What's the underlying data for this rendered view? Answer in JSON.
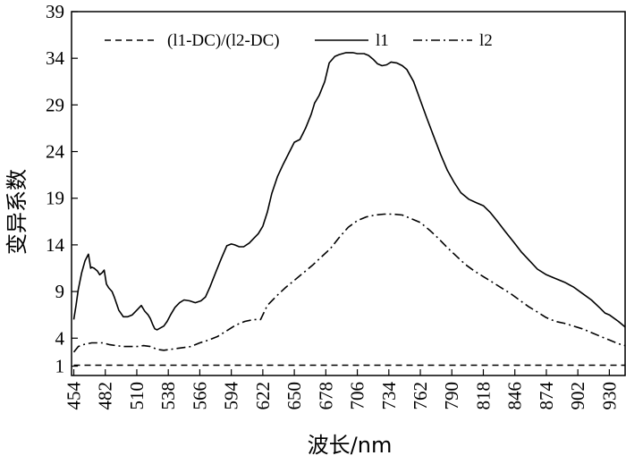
{
  "chart_data": {
    "type": "line",
    "title": "",
    "xlabel": "波长/nm",
    "ylabel": "变异系数",
    "xlim": [
      452,
      944
    ],
    "ylim": [
      0,
      39
    ],
    "x_ticks": [
      454,
      482,
      510,
      538,
      566,
      594,
      622,
      650,
      678,
      706,
      734,
      762,
      790,
      818,
      846,
      874,
      902,
      930
    ],
    "y_ticks": [
      1,
      4,
      9,
      14,
      19,
      24,
      29,
      34,
      39
    ],
    "grid": false,
    "legend_position": "top",
    "series": [
      {
        "name": "(l1-DC)/(l2-DC)",
        "line_style": "dashed",
        "color": "#000000",
        "x": [
          454,
          944
        ],
        "y": [
          1.1,
          1.1
        ]
      },
      {
        "name": "l1",
        "line_style": "solid",
        "color": "#000000",
        "x": [
          454,
          456,
          458,
          461,
          464,
          467,
          469,
          470,
          472,
          475,
          477,
          479,
          481,
          483,
          485,
          488,
          490,
          494,
          498,
          502,
          506,
          510,
          514,
          517,
          520,
          522,
          524,
          526,
          528,
          531,
          534,
          537,
          540,
          544,
          548,
          552,
          557,
          562,
          567,
          571,
          575,
          580,
          585,
          590,
          594,
          597,
          601,
          605,
          610,
          614,
          618,
          622,
          626,
          630,
          635,
          640,
          645,
          650,
          655,
          660,
          665,
          668,
          672,
          677,
          681,
          686,
          690,
          696,
          702,
          706,
          712,
          716,
          720,
          724,
          728,
          732,
          736,
          741,
          746,
          750,
          756,
          762,
          768,
          774,
          780,
          786,
          792,
          798,
          805,
          812,
          818,
          824,
          830,
          837,
          845,
          852,
          859,
          866,
          874,
          882,
          890,
          898,
          906,
          914,
          922,
          926,
          930,
          938,
          944
        ],
        "y": [
          6.0,
          7.5,
          9.2,
          11.0,
          12.3,
          13.0,
          11.5,
          11.6,
          11.5,
          11.2,
          10.8,
          11.0,
          11.3,
          9.8,
          9.4,
          9.0,
          8.4,
          7.0,
          6.3,
          6.3,
          6.5,
          7.0,
          7.5,
          6.9,
          6.5,
          6.1,
          5.5,
          5.0,
          4.9,
          5.1,
          5.3,
          5.8,
          6.5,
          7.3,
          7.8,
          8.1,
          8.0,
          7.8,
          8.0,
          8.4,
          9.5,
          11.0,
          12.5,
          13.9,
          14.1,
          14.0,
          13.8,
          13.8,
          14.2,
          14.7,
          15.2,
          16.0,
          17.5,
          19.5,
          21.3,
          22.6,
          23.8,
          25.0,
          25.3,
          26.5,
          28.0,
          29.2,
          30.0,
          31.5,
          33.5,
          34.2,
          34.4,
          34.6,
          34.6,
          34.5,
          34.5,
          34.3,
          33.9,
          33.4,
          33.2,
          33.3,
          33.6,
          33.5,
          33.2,
          32.8,
          31.5,
          29.5,
          27.5,
          25.6,
          23.7,
          22.0,
          20.7,
          19.6,
          18.9,
          18.5,
          18.2,
          17.5,
          16.6,
          15.5,
          14.3,
          13.2,
          12.3,
          11.4,
          10.8,
          10.4,
          10.0,
          9.5,
          8.8,
          8.1,
          7.2,
          6.7,
          6.5,
          5.8,
          5.2
        ],
        "note": ""
      },
      {
        "name": "l2",
        "line_style": "dashdot",
        "color": "#000000",
        "x": [
          454,
          458,
          462,
          466,
          470,
          475,
          480,
          486,
          492,
          498,
          504,
          510,
          516,
          522,
          528,
          534,
          540,
          546,
          552,
          558,
          566,
          574,
          582,
          590,
          598,
          606,
          614,
          620,
          626,
          634,
          642,
          650,
          658,
          666,
          674,
          682,
          690,
          698,
          706,
          714,
          722,
          730,
          738,
          746,
          754,
          762,
          770,
          778,
          786,
          794,
          802,
          810,
          818,
          826,
          834,
          842,
          850,
          858,
          866,
          874,
          882,
          890,
          898,
          906,
          914,
          922,
          930,
          938,
          944
        ],
        "y": [
          2.5,
          3.1,
          3.3,
          3.4,
          3.5,
          3.5,
          3.5,
          3.3,
          3.2,
          3.1,
          3.1,
          3.1,
          3.2,
          3.1,
          2.8,
          2.7,
          2.8,
          2.9,
          3.0,
          3.1,
          3.5,
          3.8,
          4.2,
          4.8,
          5.4,
          5.8,
          6.0,
          6.0,
          7.5,
          8.5,
          9.4,
          10.2,
          11.0,
          11.8,
          12.7,
          13.6,
          14.8,
          15.9,
          16.6,
          17.0,
          17.2,
          17.3,
          17.3,
          17.2,
          16.8,
          16.4,
          15.6,
          14.7,
          13.7,
          12.8,
          11.9,
          11.2,
          10.6,
          10.0,
          9.4,
          8.8,
          8.1,
          7.4,
          6.8,
          6.2,
          5.8,
          5.6,
          5.3,
          5.0,
          4.6,
          4.2,
          3.8,
          3.4,
          3.2
        ]
      }
    ]
  }
}
